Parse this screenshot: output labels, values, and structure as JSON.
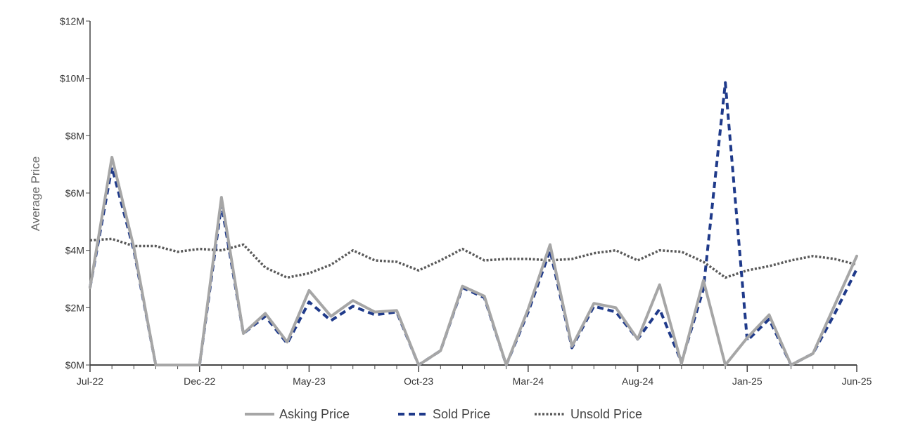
{
  "chart_data": {
    "type": "line",
    "title": "",
    "xlabel": "",
    "ylabel": "Average Price",
    "ylim": [
      0,
      12000000
    ],
    "y_ticks": [
      "$0M",
      "$2M",
      "$4M",
      "$6M",
      "$8M",
      "$10M",
      "$12M"
    ],
    "x_ticks": [
      "Jul-22",
      "Dec-22",
      "May-23",
      "Oct-23",
      "Mar-24",
      "Aug-24",
      "Jan-25",
      "Jun-25"
    ],
    "x": [
      "Jul-22",
      "Aug-22",
      "Sep-22",
      "Oct-22",
      "Nov-22",
      "Dec-22",
      "Jan-23",
      "Feb-23",
      "Mar-23",
      "Apr-23",
      "May-23",
      "Jun-23",
      "Jul-23",
      "Aug-23",
      "Sep-23",
      "Oct-23",
      "Nov-23",
      "Dec-23",
      "Jan-24",
      "Feb-24",
      "Mar-24",
      "Apr-24",
      "May-24",
      "Jun-24",
      "Jul-24",
      "Aug-24",
      "Sep-24",
      "Oct-24",
      "Nov-24",
      "Dec-24",
      "Jan-25",
      "Feb-25",
      "Mar-25",
      "Apr-25",
      "May-25",
      "Jun-25"
    ],
    "legend_position": "bottom",
    "grid": false,
    "series": [
      {
        "name": "Asking Price",
        "color": "#a6a6a6",
        "style": "solid",
        "values": [
          2700000,
          7250000,
          4100000,
          0,
          0,
          0,
          5850000,
          1100000,
          1800000,
          800000,
          2600000,
          1700000,
          2250000,
          1850000,
          1900000,
          0,
          500000,
          2750000,
          2400000,
          0,
          1950000,
          4200000,
          650000,
          2150000,
          2000000,
          900000,
          2800000,
          50000,
          2950000,
          0,
          950000,
          1750000,
          0,
          400000,
          2100000,
          3800000
        ]
      },
      {
        "name": "Sold Price",
        "color": "#1f3a8a",
        "style": "dashed",
        "values": [
          2700000,
          6900000,
          4000000,
          0,
          0,
          0,
          5600000,
          1100000,
          1700000,
          750000,
          2200000,
          1550000,
          2050000,
          1750000,
          1850000,
          0,
          500000,
          2700000,
          2350000,
          0,
          1850000,
          4000000,
          600000,
          2050000,
          1850000,
          900000,
          1950000,
          100000,
          2650000,
          9850000,
          850000,
          1600000,
          0,
          400000,
          1800000,
          3350000
        ]
      },
      {
        "name": "Unsold Price",
        "color": "#595959",
        "style": "dotted",
        "values": [
          4350000,
          4400000,
          4150000,
          4150000,
          3950000,
          4050000,
          4000000,
          4200000,
          3400000,
          3050000,
          3200000,
          3500000,
          4000000,
          3650000,
          3600000,
          3300000,
          3650000,
          4050000,
          3650000,
          3700000,
          3700000,
          3650000,
          3700000,
          3900000,
          4000000,
          3650000,
          4000000,
          3950000,
          3600000,
          3050000,
          3300000,
          3450000,
          3650000,
          3800000,
          3700000,
          3500000
        ]
      }
    ]
  }
}
